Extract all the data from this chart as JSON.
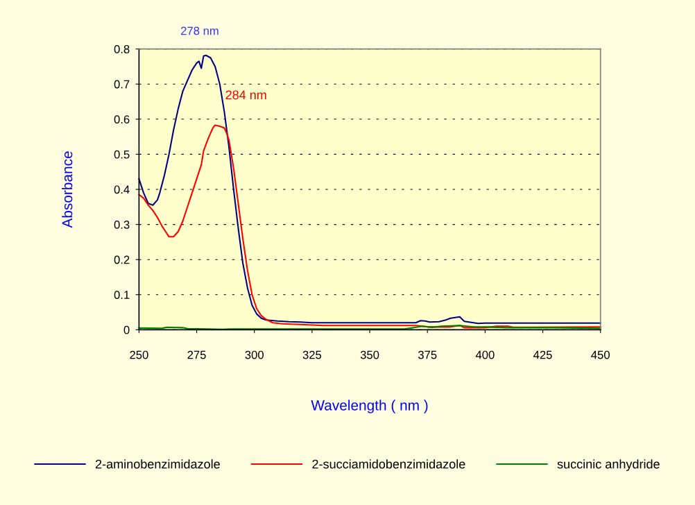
{
  "chart_data": {
    "type": "line",
    "xlabel": "Wavelength ( nm )",
    "ylabel": "Absorbance",
    "xlim": [
      250,
      450
    ],
    "ylim": [
      0,
      0.8
    ],
    "xticks": [
      250,
      275,
      300,
      325,
      350,
      375,
      400,
      425,
      450
    ],
    "yticks": [
      0,
      0.1,
      0.2,
      0.3,
      0.4,
      0.5,
      0.6,
      0.7,
      0.8
    ],
    "grid": "y",
    "legend": "bottom",
    "marker": "none",
    "line_style": "solid",
    "annotations": [
      {
        "text": "278 nm",
        "x": 278,
        "y": 0.78
      },
      {
        "text": "284 nm",
        "x": 284,
        "y": 0.58
      }
    ],
    "series": [
      {
        "name": "2-aminobenzimidazole",
        "color": "#000080",
        "x": [
          250,
          252,
          254,
          256,
          258,
          259,
          261,
          263,
          265,
          267,
          269,
          271,
          273,
          275,
          276,
          277,
          278,
          279,
          281,
          283,
          285,
          287,
          289,
          291,
          293,
          295,
          297,
          299,
          301,
          303,
          305,
          310,
          315,
          320,
          325,
          350,
          370,
          372,
          374,
          376,
          380,
          383,
          385,
          387,
          389,
          391,
          393,
          397,
          400,
          450
        ],
        "values": [
          0.43,
          0.39,
          0.36,
          0.355,
          0.37,
          0.39,
          0.44,
          0.5,
          0.57,
          0.63,
          0.68,
          0.71,
          0.74,
          0.76,
          0.765,
          0.745,
          0.78,
          0.782,
          0.775,
          0.75,
          0.7,
          0.62,
          0.52,
          0.4,
          0.29,
          0.19,
          0.12,
          0.07,
          0.045,
          0.033,
          0.028,
          0.025,
          0.023,
          0.022,
          0.02,
          0.02,
          0.02,
          0.026,
          0.025,
          0.022,
          0.023,
          0.028,
          0.033,
          0.035,
          0.037,
          0.024,
          0.022,
          0.018,
          0.019,
          0.019
        ]
      },
      {
        "name": "2-succiamidobenzimidazole",
        "color": "#ff0000",
        "x": [
          250,
          252,
          254,
          256,
          258,
          260,
          262,
          263,
          265,
          267,
          269,
          271,
          273,
          275,
          277,
          278,
          280,
          282,
          283,
          285,
          287,
          288,
          289,
          291,
          293,
          295,
          297,
          299,
          301,
          303,
          305,
          308,
          312,
          320,
          330,
          370,
          375,
          385,
          389,
          391,
          400,
          405,
          410,
          412,
          450
        ],
        "values": [
          0.385,
          0.375,
          0.355,
          0.34,
          0.32,
          0.295,
          0.275,
          0.265,
          0.265,
          0.28,
          0.31,
          0.35,
          0.39,
          0.43,
          0.47,
          0.51,
          0.545,
          0.575,
          0.583,
          0.58,
          0.575,
          0.56,
          0.54,
          0.46,
          0.36,
          0.26,
          0.17,
          0.1,
          0.06,
          0.04,
          0.03,
          0.02,
          0.017,
          0.015,
          0.012,
          0.012,
          0.008,
          0.008,
          0.012,
          0.006,
          0.006,
          0.01,
          0.01,
          0.007,
          0.008
        ]
      },
      {
        "name": "succinic anhydride",
        "color": "#008000",
        "x": [
          250,
          260,
          262,
          269,
          271,
          280,
          286,
          290,
          365,
          370,
          373,
          377,
          381,
          389,
          395,
          400,
          410,
          430,
          450
        ],
        "values": [
          0.005,
          0.004,
          0.007,
          0.006,
          0.003,
          0.002,
          0.001,
          0.002,
          0.002,
          0.007,
          0.01,
          0.007,
          0.01,
          0.012,
          0.008,
          0.008,
          0.006,
          0.006,
          0.004
        ]
      }
    ]
  }
}
